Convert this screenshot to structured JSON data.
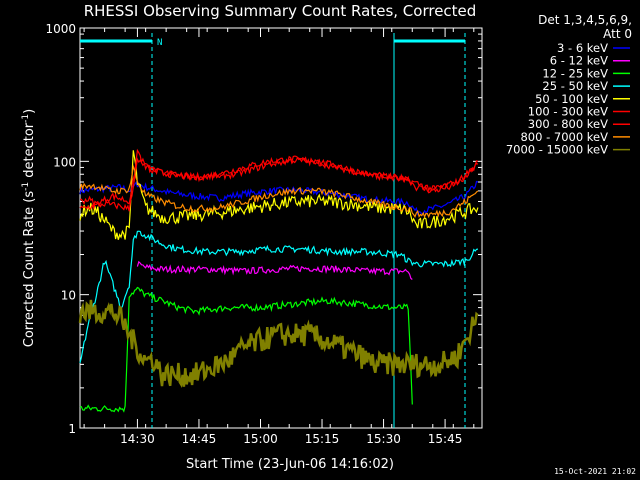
{
  "chart_data": {
    "type": "line",
    "title": "RHESSI Observing Summary Count Rates, Corrected",
    "xlabel": "Start Time (23-Jun-06 14:16:02)",
    "ylabel_main": "Corrected Count Rate (s",
    "ylabel_sup1": "-1",
    "ylabel_mid": " detector",
    "ylabel_sup2": "-1",
    "ylabel_end": ")",
    "yscale": "log",
    "ylim": [
      1,
      1000
    ],
    "xlim_minutes": [
      0,
      98
    ],
    "x_ticks": [
      {
        "label": "14:30",
        "min": 14
      },
      {
        "label": "14:45",
        "min": 29
      },
      {
        "label": "15:00",
        "min": 44
      },
      {
        "label": "15:15",
        "min": 59
      },
      {
        "label": "15:30",
        "min": 74
      },
      {
        "label": "15:45",
        "min": 89
      }
    ],
    "y_ticks": [
      {
        "label": "1",
        "v": 1
      },
      {
        "label": "10",
        "v": 10
      },
      {
        "label": "100",
        "v": 100
      },
      {
        "label": "1000",
        "v": 1000
      }
    ],
    "legend": {
      "header1": "Det 1,3,4,5,6,9,",
      "header2": "Att 0",
      "placement": "right"
    },
    "series": [
      {
        "name": "3 - 6 keV",
        "color": "#0000ff",
        "x": [
          0,
          5,
          10,
          12,
          14,
          16,
          18,
          22,
          28,
          34,
          40,
          46,
          52,
          58,
          64,
          70,
          76,
          80,
          82,
          86,
          90,
          94,
          97
        ],
        "y": [
          60,
          62,
          64,
          60,
          68,
          64,
          62,
          58,
          55,
          53,
          57,
          60,
          61,
          59,
          56,
          52,
          50,
          49,
          42,
          44,
          48,
          55,
          70
        ]
      },
      {
        "name": "6 - 12 keV",
        "color": "#ff00ff",
        "x": [
          14,
          16,
          20,
          26,
          32,
          40,
          48,
          56,
          64,
          70,
          76,
          80,
          81
        ],
        "y": [
          17,
          16,
          15.5,
          15.5,
          15.5,
          15,
          15.5,
          15.8,
          15.5,
          15,
          15,
          15,
          13
        ]
      },
      {
        "name": "12 - 25 keV",
        "color": "#00ff00",
        "x": [
          0,
          4,
          8,
          11,
          12,
          14,
          16,
          20,
          24,
          28,
          36,
          44,
          52,
          60,
          68,
          76,
          80,
          81
        ],
        "y": [
          1.4,
          1.4,
          1.4,
          1.4,
          10,
          11,
          10,
          9,
          8,
          7.5,
          8,
          8,
          8.5,
          9,
          8.5,
          8,
          8,
          1.5
        ]
      },
      {
        "name": "25 - 50 keV",
        "color": "#00ffff",
        "x": [
          0,
          2,
          4,
          6,
          8,
          10,
          12,
          13,
          14,
          16,
          20,
          24,
          30,
          38,
          46,
          54,
          62,
          70,
          78,
          80,
          82,
          86,
          90,
          94,
          97
        ],
        "y": [
          3,
          6,
          10,
          18,
          12,
          8,
          12,
          25,
          30,
          28,
          24,
          22,
          21,
          21,
          22,
          22,
          21,
          21,
          20,
          18,
          17,
          17,
          17,
          18,
          22
        ]
      },
      {
        "name": "50 - 100 keV",
        "color": "#ffff00",
        "x": [
          0,
          2,
          4,
          6,
          8,
          10,
          12,
          13,
          14,
          16,
          20,
          24,
          30,
          36,
          42,
          48,
          54,
          60,
          66,
          72,
          78,
          80,
          82,
          86,
          90,
          94,
          97
        ],
        "y": [
          40,
          45,
          42,
          36,
          30,
          28,
          30,
          120,
          70,
          45,
          38,
          38,
          40,
          42,
          45,
          48,
          50,
          50,
          48,
          45,
          44,
          42,
          33,
          35,
          38,
          42,
          45
        ]
      },
      {
        "name": "100 - 300 keV",
        "color": "#ff0000",
        "x": [
          0,
          2,
          4,
          8,
          12,
          13,
          14,
          16,
          20,
          24,
          28,
          34,
          40,
          46,
          52,
          58,
          64,
          70,
          76,
          80,
          82,
          86,
          90,
          94,
          97
        ],
        "y": [
          50,
          52,
          48,
          55,
          50,
          70,
          120,
          90,
          82,
          78,
          76,
          80,
          90,
          100,
          104,
          100,
          90,
          80,
          76,
          74,
          64,
          60,
          64,
          75,
          100
        ]
      },
      {
        "name": "300 - 800 keV",
        "color": "#ff0000",
        "x": [
          0,
          3,
          6,
          10,
          12,
          14,
          18,
          24,
          30,
          38,
          46,
          52,
          58,
          64,
          72,
          80,
          86,
          92,
          97
        ],
        "y": [
          44,
          46,
          48,
          46,
          44,
          100,
          85,
          78,
          76,
          80,
          95,
          102,
          98,
          88,
          78,
          72,
          62,
          70,
          95
        ]
      },
      {
        "name": "800 - 7000 keV",
        "color": "#ff8c00",
        "x": [
          0,
          2,
          4,
          6,
          8,
          10,
          12,
          13,
          14,
          16,
          20,
          24,
          28,
          34,
          40,
          46,
          52,
          58,
          64,
          70,
          76,
          80,
          82,
          86,
          90,
          94,
          97
        ],
        "y": [
          64,
          66,
          65,
          62,
          60,
          60,
          62,
          90,
          70,
          56,
          50,
          46,
          44,
          45,
          50,
          56,
          60,
          60,
          56,
          50,
          46,
          44,
          40,
          40,
          42,
          50,
          60
        ]
      },
      {
        "name": "7000 - 15000 keV",
        "color": "#808000",
        "x": [
          0,
          4,
          8,
          10,
          12,
          14,
          16,
          18,
          20,
          24,
          28,
          32,
          36,
          40,
          44,
          48,
          52,
          56,
          60,
          64,
          68,
          72,
          76,
          80,
          84,
          88,
          92,
          96,
          97
        ],
        "y": [
          7.5,
          7.5,
          7.5,
          6.5,
          5,
          4,
          3.2,
          3.3,
          2.5,
          2.5,
          2.5,
          2.8,
          3.2,
          4,
          4.5,
          5,
          5,
          5,
          4.5,
          4,
          3.5,
          3,
          3,
          3,
          3,
          3,
          3.5,
          6,
          7
        ]
      }
    ],
    "annotations": {
      "sun_marker": "N",
      "timestamp": "15-Oct-2021 21:02"
    }
  }
}
